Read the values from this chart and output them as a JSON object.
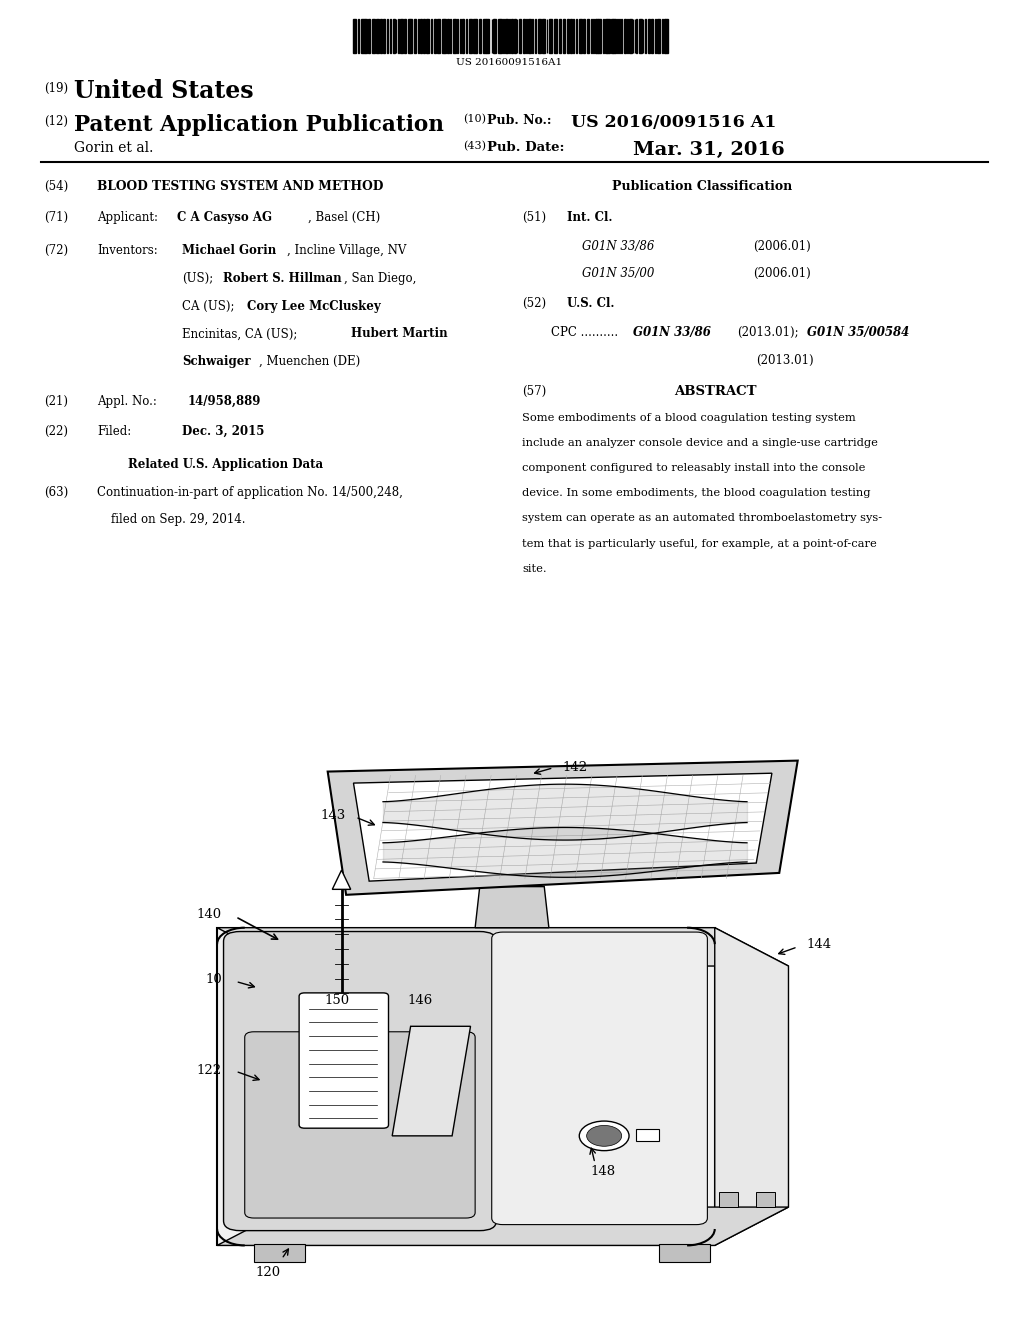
{
  "bg_color": "#ffffff",
  "barcode_text": "US 20160091516A1",
  "line19_num": "(19)",
  "line19_text": "United States",
  "line12_num": "(12)",
  "line12_text": "Patent Application Publication",
  "line10_num": "(10)",
  "line10_label": "Pub. No.:",
  "line10_value": "US 2016/0091516 A1",
  "line43_num": "(43)",
  "line43_label": "Pub. Date:",
  "line43_value": "Mar. 31, 2016",
  "author_line": "Gorin et al.",
  "title54_num": "(54)",
  "title54_text": "BLOOD TESTING SYSTEM AND METHOD",
  "pub_class_title": "Publication Classification",
  "line71_num": "(71)",
  "line71_label": "Applicant:",
  "line71_bold": "C A Casyso AG",
  "line71_plain": ", Basel (CH)",
  "line51_num": "(51)",
  "line51_label": "Int. Cl.",
  "line51_class1": "G01N 33/86",
  "line51_year1": "(2006.01)",
  "line51_class2": "G01N 35/00",
  "line51_year2": "(2006.01)",
  "line52_num": "(52)",
  "line52_label": "U.S. Cl.",
  "line52_cpc_plain": "CPC ..........",
  "line52_cpc_bold1": "G01N 33/86",
  "line52_cpc_year1": "(2013.01);",
  "line52_cpc_bold2": "G01N 35/00584",
  "line52_cpc_year2": "(2013.01)",
  "line72_num": "(72)",
  "line72_label": "Inventors:",
  "inv1_bold": "Michael Gorin",
  "inv1_plain": ", Incline Village, NV",
  "inv2_pre": "(US);",
  "inv2_bold": "Robert S. Hillman",
  "inv2_plain": ", San Diego,",
  "inv3_pre": "CA (US);",
  "inv3_bold": "Cory Lee McCluskey",
  "inv4_pre": "Encinitas, CA (US);",
  "inv4_bold": "Hubert Martin",
  "inv5_bold": "Schwaiger",
  "inv5_plain": ", Muenchen (DE)",
  "line57_num": "(57)",
  "line57_title": "ABSTRACT",
  "abstract_text": "Some embodiments of a blood coagulation testing system include an analyzer console device and a single-use cartridge component configured to releasably install into the console device. In some embodiments, the blood coagulation testing system can operate as an automated thromboelastometry sys-tem that is particularly useful, for example, at a point-of-care site.",
  "line21_num": "(21)",
  "line21_label": "Appl. No.:",
  "line21_value": "14/958,889",
  "line22_num": "(22)",
  "line22_label": "Filed:",
  "line22_value": "Dec. 3, 2015",
  "related_title": "Related U.S. Application Data",
  "line63_num": "(63)",
  "line63_text1": "Continuation-in-part of application No. 14/500,248,",
  "line63_text2": "filed on Sep. 29, 2014."
}
